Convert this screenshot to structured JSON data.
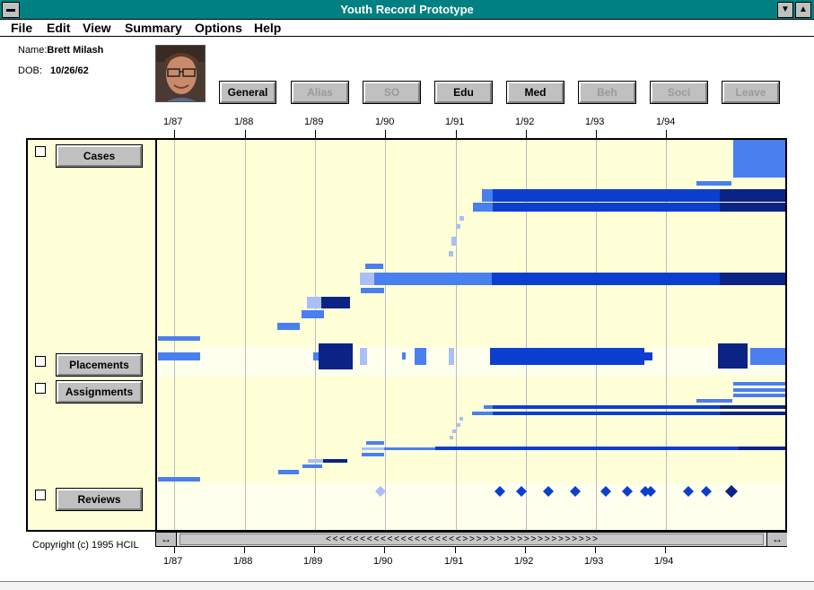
{
  "window": {
    "title": "Youth Record Prototype"
  },
  "menu": [
    "File",
    "Edit",
    "View",
    "Summary",
    "Options",
    "Help"
  ],
  "person": {
    "name_label": "Name:",
    "name": "Brett Milash",
    "dob_label": "DOB:",
    "dob": "10/26/62"
  },
  "tabs": [
    {
      "label": "General",
      "enabled": true
    },
    {
      "label": "Alias",
      "enabled": false
    },
    {
      "label": "SO",
      "enabled": false
    },
    {
      "label": "Edu",
      "enabled": true
    },
    {
      "label": "Med",
      "enabled": true
    },
    {
      "label": "Beh",
      "enabled": false
    },
    {
      "label": "Soci",
      "enabled": false
    },
    {
      "label": "Leave",
      "enabled": false
    }
  ],
  "timeline_ticks": [
    "1/87",
    "1/88",
    "1/89",
    "1/90",
    "1/91",
    "1/92",
    "1/93",
    "1/94"
  ],
  "categories": [
    {
      "label": "Cases",
      "checked": false
    },
    {
      "label": "Placements",
      "checked": false
    },
    {
      "label": "Assignments",
      "checked": false
    },
    {
      "label": "Reviews",
      "checked": false
    }
  ],
  "scrollbar": {
    "arrows": "< < < < < < < < < < < < < < < < < < < < > > > > > > > > > > > > > > > > > > > >"
  },
  "copyright": "Copyright (c) 1995 HCIL",
  "colors": {
    "title_bar": "#008080",
    "band_yellow": "#ffffd8",
    "band_white": "#ffffee",
    "light_blue": "#aabff5",
    "mid_blue": "#4a7ff0",
    "blue": "#0c3fd0",
    "dark_blue": "#0a2385"
  }
}
